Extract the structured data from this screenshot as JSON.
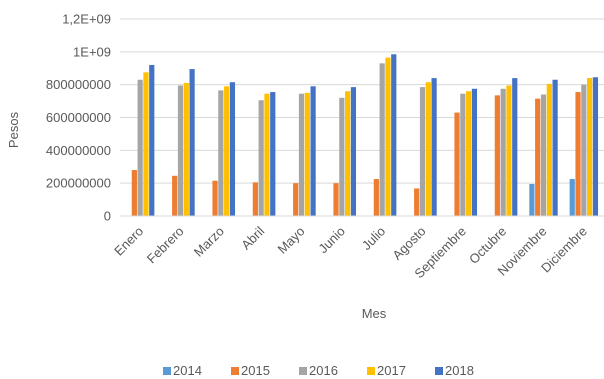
{
  "chart_data": {
    "type": "bar",
    "xlabel": "Mes",
    "ylabel": "Pesos",
    "ylim": [
      0,
      1200000000
    ],
    "yticks": [
      "0",
      "200000000",
      "400000000",
      "600000000",
      "800000000",
      "1E+09",
      "1,2E+09"
    ],
    "grid": true,
    "legend_position": "bottom",
    "categories": [
      "Enero",
      "Febrero",
      "Marzo",
      "Abril",
      "Mayo",
      "Junio",
      "Julio",
      "Agosto",
      "Septiembre",
      "Octubre",
      "Noviembre",
      "Diciembre"
    ],
    "series": [
      {
        "name": "2014",
        "color": "#5B9BD5",
        "values": [
          0,
          0,
          0,
          0,
          0,
          0,
          0,
          0,
          0,
          0,
          195000000,
          225000000
        ]
      },
      {
        "name": "2015",
        "color": "#ED7D31",
        "values": [
          280000000,
          245000000,
          215000000,
          205000000,
          200000000,
          200000000,
          225000000,
          168000000,
          630000000,
          735000000,
          715000000,
          755000000
        ]
      },
      {
        "name": "2016",
        "color": "#A5A5A5",
        "values": [
          830000000,
          795000000,
          765000000,
          705000000,
          745000000,
          720000000,
          930000000,
          785000000,
          745000000,
          775000000,
          740000000,
          800000000
        ]
      },
      {
        "name": "2017",
        "color": "#FFC000",
        "values": [
          875000000,
          810000000,
          790000000,
          745000000,
          750000000,
          760000000,
          965000000,
          815000000,
          760000000,
          795000000,
          805000000,
          840000000
        ]
      },
      {
        "name": "2018",
        "color": "#4472C4",
        "values": [
          920000000,
          895000000,
          815000000,
          755000000,
          790000000,
          785000000,
          985000000,
          840000000,
          775000000,
          840000000,
          830000000,
          845000000
        ]
      }
    ]
  }
}
